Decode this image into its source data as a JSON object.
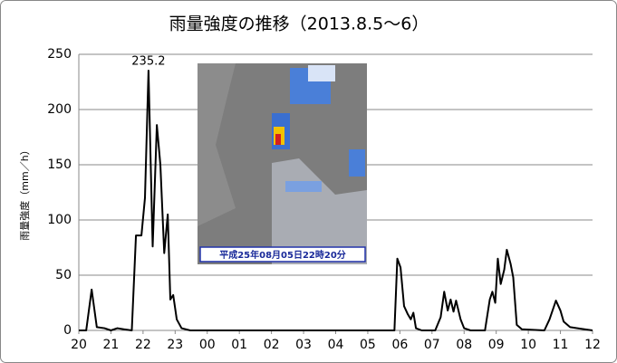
{
  "chart_data": {
    "type": "line",
    "title": "雨量強度の推移（2013.8.5～6）",
    "y_label": "雨量強度（mm／h）",
    "inset_caption": "平成25年08月05日22時20分",
    "color": "#000000",
    "grid": true,
    "xlim": [
      0,
      16
    ],
    "xticks": [
      {
        "value": 0,
        "label": "20"
      },
      {
        "value": 1,
        "label": "21"
      },
      {
        "value": 2,
        "label": "22"
      },
      {
        "value": 3,
        "label": "23"
      },
      {
        "value": 4,
        "label": "00"
      },
      {
        "value": 5,
        "label": "01"
      },
      {
        "value": 6,
        "label": "02"
      },
      {
        "value": 7,
        "label": "03"
      },
      {
        "value": 8,
        "label": "04"
      },
      {
        "value": 9,
        "label": "05"
      },
      {
        "value": 10,
        "label": "06"
      },
      {
        "value": 11,
        "label": "07"
      },
      {
        "value": 12,
        "label": "08"
      },
      {
        "value": 13,
        "label": "09"
      },
      {
        "value": 14,
        "label": "10"
      },
      {
        "value": 15,
        "label": "11"
      },
      {
        "value": 16,
        "label": "12"
      }
    ],
    "ylim": [
      0,
      250
    ],
    "yticks": [
      0,
      50,
      100,
      150,
      200,
      250
    ],
    "x": [
      0,
      0.23,
      0.4,
      0.56,
      0.8,
      1.0,
      1.2,
      1.4,
      1.65,
      1.78,
      1.95,
      2.06,
      2.17,
      2.3,
      2.43,
      2.54,
      2.66,
      2.77,
      2.85,
      2.94,
      3.05,
      3.2,
      3.47,
      9.83,
      9.92,
      10.02,
      10.13,
      10.24,
      10.34,
      10.42,
      10.5,
      10.68,
      11.1,
      11.27,
      11.38,
      11.49,
      11.58,
      11.67,
      11.75,
      11.89,
      12.0,
      12.2,
      12.65,
      12.8,
      12.88,
      12.97,
      13.05,
      13.14,
      13.25,
      13.33,
      13.45,
      13.53,
      13.64,
      13.8,
      14.5,
      14.66,
      14.86,
      15.0,
      15.1,
      15.3,
      15.75,
      16.0
    ],
    "values": [
      0,
      0,
      37,
      3,
      2,
      0,
      2,
      1,
      0,
      86,
      86,
      120,
      235.2,
      76,
      186,
      150,
      70,
      105,
      28,
      32,
      10,
      2,
      0,
      0,
      65,
      57,
      22,
      15,
      10,
      16,
      2,
      0,
      0,
      12,
      35,
      18,
      28,
      17,
      27,
      10,
      2,
      0,
      0,
      28,
      35,
      25,
      65,
      42,
      55,
      73,
      60,
      48,
      5,
      1,
      0,
      10,
      27,
      18,
      8,
      3,
      1,
      0
    ],
    "labeled_point": 12
  }
}
